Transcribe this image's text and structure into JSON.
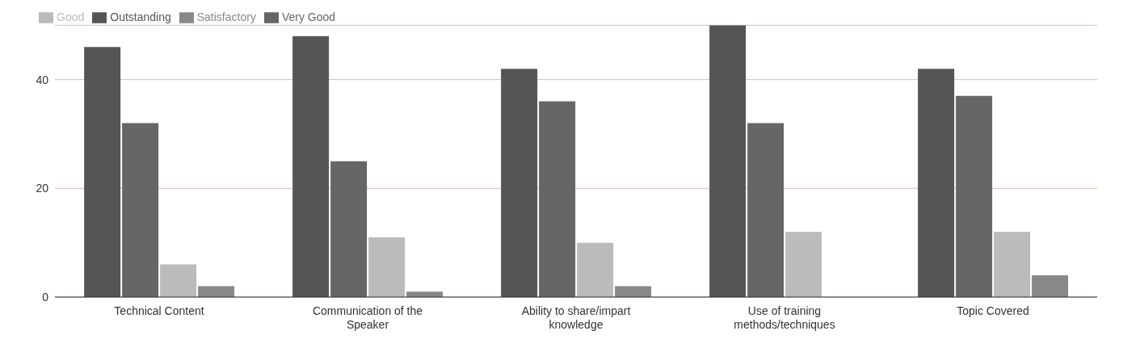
{
  "chart_data": {
    "type": "bar",
    "categories": [
      "Technical Content",
      "Communication of the Speaker",
      "Ability to share/impart knowledge",
      "Use of training methods/techniques",
      "Topic Covered"
    ],
    "series": [
      {
        "name": "Outstanding",
        "color": "#555555",
        "values": [
          46,
          48,
          42,
          50,
          42
        ]
      },
      {
        "name": "Very Good",
        "color": "#666666",
        "values": [
          32,
          25,
          36,
          32,
          37
        ]
      },
      {
        "name": "Good",
        "color": "#bbbbbb",
        "values": [
          6,
          11,
          10,
          12,
          12
        ]
      },
      {
        "name": "Satisfactory",
        "color": "#888888",
        "values": [
          2,
          1,
          2,
          0,
          4
        ]
      }
    ],
    "ylim": [
      0,
      50
    ],
    "yticks": [
      0,
      20,
      40
    ],
    "grid": "y",
    "legend": "top left"
  }
}
